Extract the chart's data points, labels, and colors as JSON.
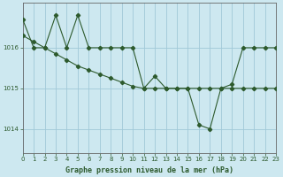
{
  "title": "Graphe pression niveau de la mer (hPa)",
  "background_color": "#cde8f0",
  "grid_color": "#a0c8d8",
  "line_color": "#2d5a2d",
  "x_min": 0,
  "x_max": 23,
  "y_min": 1013.4,
  "y_max": 1017.1,
  "yticks": [
    1014,
    1015,
    1016
  ],
  "xticks": [
    0,
    1,
    2,
    3,
    4,
    5,
    6,
    7,
    8,
    9,
    10,
    11,
    12,
    13,
    14,
    15,
    16,
    17,
    18,
    19,
    20,
    21,
    22,
    23
  ],
  "series1_x": [
    0,
    1,
    2,
    3,
    4,
    5,
    6,
    7,
    8,
    9,
    10,
    11,
    12,
    13,
    14,
    15,
    16,
    17,
    18,
    19,
    20,
    21,
    22,
    23
  ],
  "series1_y": [
    1016.7,
    1016.0,
    1016.0,
    1016.8,
    1016.0,
    1016.8,
    1016.0,
    1016.0,
    1016.0,
    1016.0,
    1016.0,
    1015.0,
    1015.3,
    1015.0,
    1015.0,
    1015.0,
    1014.1,
    1014.0,
    1015.0,
    1015.1,
    1016.0,
    1016.0,
    1016.0,
    1016.0
  ],
  "series2_x": [
    0,
    1,
    2,
    3,
    4,
    5,
    6,
    7,
    8,
    9,
    10,
    11,
    12,
    13,
    14,
    15,
    16,
    17,
    18,
    19,
    20,
    21,
    22,
    23
  ],
  "series2_y": [
    1016.3,
    1016.15,
    1016.0,
    1015.85,
    1015.7,
    1015.55,
    1015.45,
    1015.35,
    1015.25,
    1015.15,
    1015.05,
    1015.0,
    1015.0,
    1015.0,
    1015.0,
    1015.0,
    1015.0,
    1015.0,
    1015.0,
    1015.0,
    1015.0,
    1015.0,
    1015.0,
    1015.0
  ]
}
